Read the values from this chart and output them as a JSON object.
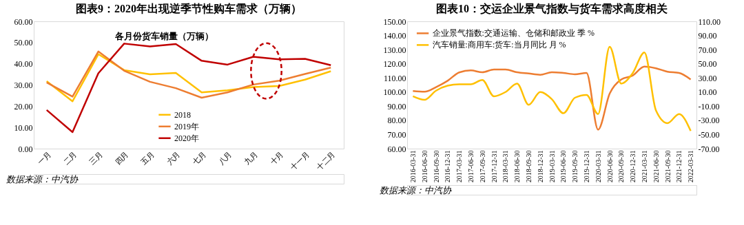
{
  "chart_data": [
    {
      "type": "line",
      "title": "图表9：2020年出现逆季节性购车需求（万辆）",
      "subtitle": "各月份货车销量（万辆）",
      "categories": [
        "一月",
        "二月",
        "三月",
        "四月",
        "五月",
        "六月",
        "七月",
        "八月",
        "九月",
        "十月",
        "十一月",
        "十二月"
      ],
      "series": [
        {
          "name": "2018",
          "color": "#ffc000",
          "values": [
            31.8,
            22.3,
            44.5,
            37.0,
            35.0,
            35.7,
            26.5,
            27.5,
            29.0,
            29.5,
            32.5,
            36.5
          ]
        },
        {
          "name": "2019年",
          "color": "#ed7d31",
          "values": [
            31.2,
            24.5,
            45.8,
            36.7,
            31.5,
            28.5,
            24.0,
            26.5,
            30.2,
            32.0,
            35.2,
            38.2
          ]
        },
        {
          "name": "2020年",
          "color": "#c00000",
          "values": [
            18.2,
            7.8,
            35.5,
            49.5,
            48.2,
            49.3,
            41.4,
            39.6,
            43.3,
            42.1,
            42.3,
            39.3
          ]
        }
      ],
      "ylim": [
        0,
        60
      ],
      "yticks": [
        {
          "value": 0,
          "label": "0.00"
        },
        {
          "value": 10,
          "label": "10.00"
        },
        {
          "value": 20,
          "label": "20.00"
        },
        {
          "value": 30,
          "label": "30.00"
        },
        {
          "value": 40,
          "label": "40.00"
        },
        {
          "value": 50,
          "label": "50.00"
        },
        {
          "value": 60,
          "label": "60.00"
        }
      ],
      "legend": "bottom",
      "grid": false,
      "annotations": [
        "数据来源：中汽协"
      ]
    },
    {
      "type": "line",
      "title": "图表10：交运企业景气指数与货车需求高度相关",
      "categories": [
        "2016-03-31",
        "2016-06-30",
        "2016-09-30",
        "2016-12-31",
        "2017-03-31",
        "2017-06-30",
        "2017-09-30",
        "2017-12-31",
        "2018-03-31",
        "2018-06-30",
        "2018-09-30",
        "2018-12-31",
        "2019-03-31",
        "2019-06-30",
        "2019-09-30",
        "2019-12-31",
        "2020-03-31",
        "2020-06-30",
        "2020-09-30",
        "2020-12-31",
        "2021-03-31",
        "2021-06-30",
        "2021-09-30",
        "2021-12-31",
        "2022-03-31"
      ],
      "series": [
        {
          "name": "企业景气指数:交通运输、仓储和邮政业 季 %",
          "color": "#ed7d31",
          "values": [
            100.7,
            100.2,
            103.5,
            108.0,
            113.9,
            115.3,
            114.0,
            115.9,
            115.9,
            114.0,
            113.1,
            112.2,
            114.0,
            113.5,
            112.6,
            113.5,
            73.4,
            98.9,
            108.9,
            111.7,
            118.0,
            116.8,
            114.4,
            113.5,
            108.9
          ]
        },
        {
          "name": "汽车销量:商用车:货车:当月同比 月 %",
          "color": "#ffc000",
          "axis": "y2",
          "values": [
            4,
            -1,
            12,
            19,
            21,
            21,
            27,
            4,
            10,
            22,
            -8,
            10,
            0,
            -20,
            2,
            6,
            -21,
            74,
            22,
            37,
            66,
            -16,
            -34,
            -21,
            -45
          ]
        }
      ],
      "ylim": [
        60,
        150
      ],
      "yticks": [
        {
          "value": 60,
          "label": "60.00"
        },
        {
          "value": 70,
          "label": "70.00"
        },
        {
          "value": 80,
          "label": "80.00"
        },
        {
          "value": 90,
          "label": "90.00"
        },
        {
          "value": 100,
          "label": "100.00"
        },
        {
          "value": 110,
          "label": "110.00"
        },
        {
          "value": 120,
          "label": "120.00"
        },
        {
          "value": 130,
          "label": "130.00"
        },
        {
          "value": 140,
          "label": "140.00"
        },
        {
          "value": 150,
          "label": "150.00"
        }
      ],
      "y2lim": [
        -70,
        110
      ],
      "y2ticks": [
        {
          "value": -70,
          "label": "-70.00"
        },
        {
          "value": -50,
          "label": "-50.00"
        },
        {
          "value": -30,
          "label": "-30.00"
        },
        {
          "value": -10,
          "label": "-10.00"
        },
        {
          "value": 10,
          "label": "10.00"
        },
        {
          "value": 30,
          "label": "30.00"
        },
        {
          "value": 50,
          "label": "50.00"
        },
        {
          "value": 70,
          "label": "70.00"
        },
        {
          "value": 90,
          "label": "90.00"
        },
        {
          "value": 110,
          "label": "110.00"
        }
      ],
      "legend": "top left",
      "grid": false,
      "annotations": [
        "数据来源：中汽协"
      ]
    }
  ]
}
